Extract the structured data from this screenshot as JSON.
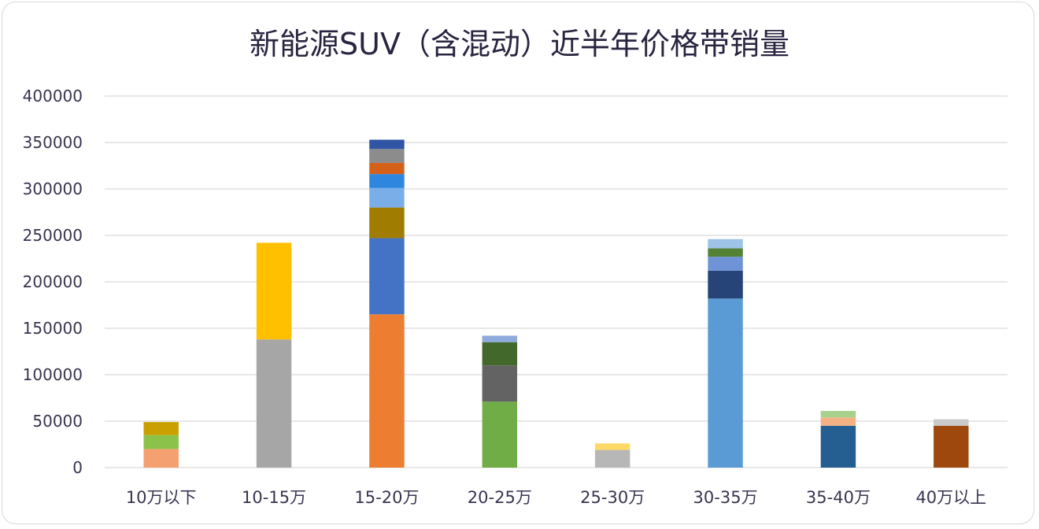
{
  "chart_data": {
    "type": "bar",
    "stacked": true,
    "title": "新能源SUV（含混动）近半年价格带销量",
    "xlabel": "",
    "ylabel": "",
    "ylim": [
      0,
      400000
    ],
    "yticks": [
      0,
      50000,
      100000,
      150000,
      200000,
      250000,
      300000,
      350000,
      400000
    ],
    "grid": true,
    "legend": "none",
    "categories": [
      "10万以下",
      "10-15万",
      "15-20万",
      "20-25万",
      "25-30万",
      "30-35万",
      "35-40万",
      "40万以上"
    ],
    "stacks": [
      [
        {
          "value": 20000,
          "color": "#F4A070"
        },
        {
          "value": 15000,
          "color": "#8BC34A"
        },
        {
          "value": 14000,
          "color": "#C9A000"
        }
      ],
      [
        {
          "value": 138000,
          "color": "#A6A6A6"
        },
        {
          "value": 104000,
          "color": "#FFC000"
        }
      ],
      [
        {
          "value": 165000,
          "color": "#ED7D31"
        },
        {
          "value": 82000,
          "color": "#4472C4"
        },
        {
          "value": 33000,
          "color": "#A07D00"
        },
        {
          "value": 21000,
          "color": "#7AAEE8"
        },
        {
          "value": 15000,
          "color": "#2E86DE"
        },
        {
          "value": 12000,
          "color": "#D4601A"
        },
        {
          "value": 15000,
          "color": "#8C8C8C"
        },
        {
          "value": 10000,
          "color": "#2F55A4"
        }
      ],
      [
        {
          "value": 71000,
          "color": "#70AD47"
        },
        {
          "value": 39000,
          "color": "#636363"
        },
        {
          "value": 25000,
          "color": "#43682B"
        },
        {
          "value": 7000,
          "color": "#8FAADC"
        }
      ],
      [
        {
          "value": 19000,
          "color": "#B7B7B7"
        },
        {
          "value": 7000,
          "color": "#FFD966"
        }
      ],
      [
        {
          "value": 182000,
          "color": "#5B9BD5"
        },
        {
          "value": 30000,
          "color": "#264478"
        },
        {
          "value": 15000,
          "color": "#6E93D6"
        },
        {
          "value": 9000,
          "color": "#548235"
        },
        {
          "value": 10000,
          "color": "#9DC3E6"
        }
      ],
      [
        {
          "value": 45000,
          "color": "#255E91"
        },
        {
          "value": 9000,
          "color": "#F4B183"
        },
        {
          "value": 7000,
          "color": "#A9D18E"
        }
      ],
      [
        {
          "value": 45000,
          "color": "#9E480E"
        },
        {
          "value": 7000,
          "color": "#C9C9C9"
        }
      ]
    ]
  }
}
